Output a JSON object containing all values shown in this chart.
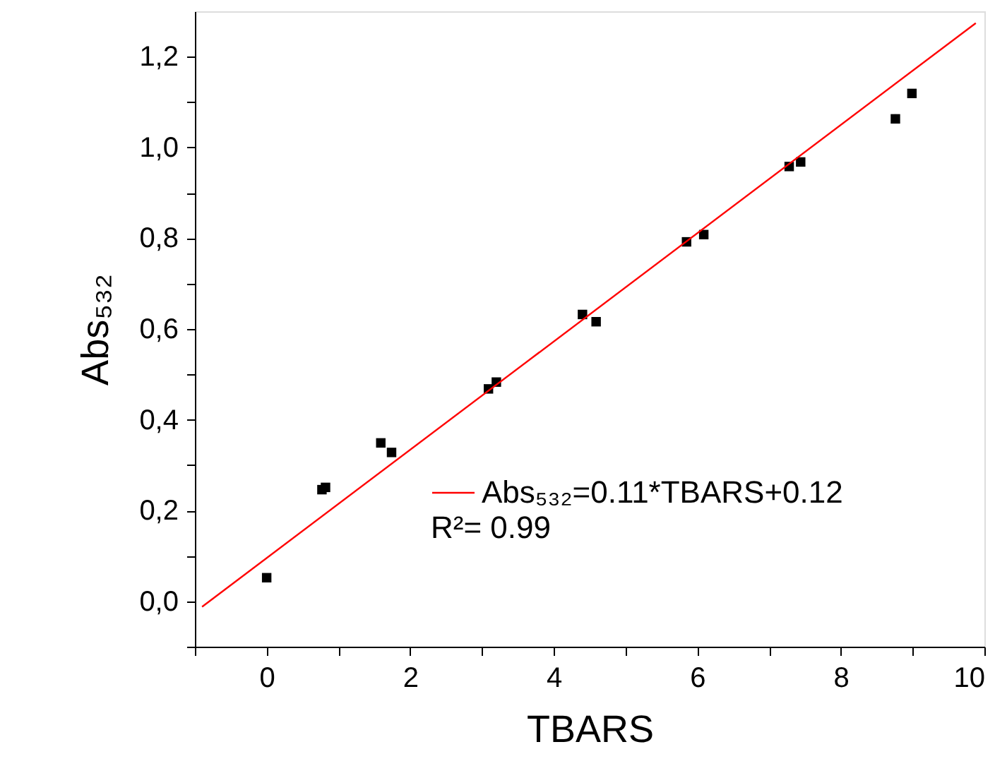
{
  "chart_data": {
    "type": "scatter",
    "xlabel": "TBARS",
    "ylabel": "Abs₅₃₂",
    "xlim": [
      -1,
      10
    ],
    "ylim": [
      -0.1,
      1.3
    ],
    "xticks": [
      {
        "value": -1,
        "label": null
      },
      0,
      {
        "value": 1,
        "label": null
      },
      2,
      {
        "value": 3,
        "label": null
      },
      4,
      {
        "value": 5,
        "label": null
      },
      6,
      {
        "value": 7,
        "label": null
      },
      8,
      {
        "value": 9,
        "label": null
      },
      10
    ],
    "yticks": [
      {
        "value": -0.1,
        "label": null
      },
      {
        "value": 0,
        "label": "0,0"
      },
      {
        "value": 0.1,
        "label": null
      },
      {
        "value": 0.2,
        "label": "0,2"
      },
      {
        "value": 0.3,
        "label": null
      },
      {
        "value": 0.4,
        "label": "0,4"
      },
      {
        "value": 0.5,
        "label": null
      },
      {
        "value": 0.6,
        "label": "0,6"
      },
      {
        "value": 0.7,
        "label": null
      },
      {
        "value": 0.8,
        "label": "0,8"
      },
      {
        "value": 0.9,
        "label": null
      },
      {
        "value": 1.0,
        "label": "1,0"
      },
      {
        "value": 1.1,
        "label": null
      },
      {
        "value": 1.2,
        "label": "1,2"
      }
    ],
    "grid": false,
    "legend": "bottom right",
    "annotations": [
      "R²= 0.99"
    ],
    "series": [
      {
        "type": "scatter",
        "marker": "square",
        "color": "#000000",
        "x": [
          0,
          0.77,
          0.82,
          1.59,
          1.74,
          3.09,
          3.2,
          4.4,
          4.59,
          5.85,
          6.09,
          7.28,
          7.44,
          8.76,
          8.99
        ],
        "values": [
          0.052,
          0.246,
          0.251,
          0.349,
          0.328,
          0.468,
          0.483,
          0.632,
          0.616,
          0.792,
          0.808,
          0.958,
          0.968,
          1.063,
          1.119
        ],
        "errors": [
          0.005,
          0.005,
          0.005,
          0.005,
          0.005,
          0.005,
          0.005,
          0.005,
          0.005,
          0.005,
          0.005,
          0.005,
          0.005,
          0.01,
          0.005
        ]
      },
      {
        "type": "line",
        "name": "Abs₅₃₂=0.11*TBARS+0.12",
        "color": "#ff0000",
        "x": [
          -0.9,
          9.88
        ],
        "values": [
          -0.012,
          1.274
        ]
      }
    ]
  }
}
